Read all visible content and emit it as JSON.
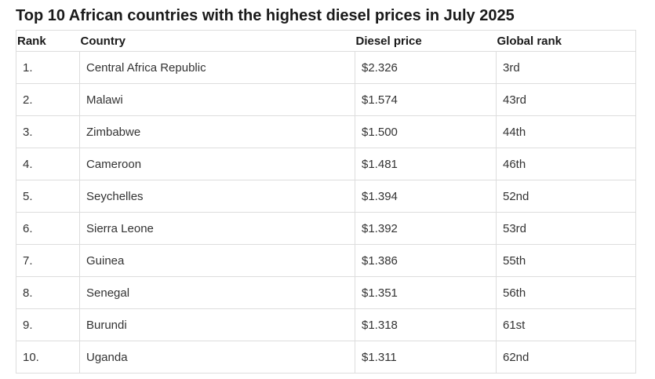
{
  "title": "Top 10 African countries with the highest diesel prices in July 2025",
  "table": {
    "headers": [
      "Rank",
      "Country",
      "Diesel price",
      "Global rank"
    ],
    "rows": [
      [
        "1.",
        "Central Africa Republic",
        "$2.326",
        "3rd"
      ],
      [
        "2.",
        "Malawi",
        "$1.574",
        "43rd"
      ],
      [
        "3.",
        "Zimbabwe",
        "$1.500",
        "44th"
      ],
      [
        "4.",
        "Cameroon",
        "$1.481",
        "46th"
      ],
      [
        "5.",
        "Seychelles",
        "$1.394",
        "52nd"
      ],
      [
        "6.",
        "Sierra Leone",
        "$1.392",
        "53rd"
      ],
      [
        "7.",
        "Guinea",
        "$1.386",
        "55th"
      ],
      [
        "8.",
        "Senegal",
        "$1.351",
        "56th"
      ],
      [
        "9.",
        "Burundi",
        "$1.318",
        "61st"
      ],
      [
        "10.",
        "Uganda",
        "$1.311",
        "62nd"
      ]
    ]
  }
}
